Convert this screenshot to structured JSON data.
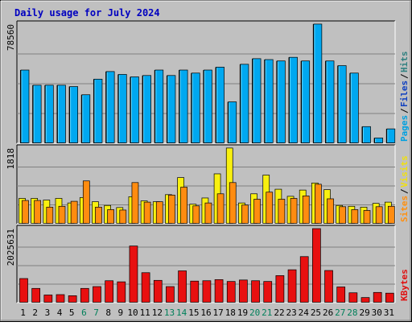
{
  "chart_data": [
    {
      "type": "bar",
      "title": "Daily usage for July 2024",
      "panel": "pages-files-hits",
      "ymax_label": "78560",
      "legend": [
        {
          "name": "Pages",
          "color": "#00a0e0"
        },
        {
          "name": "Files",
          "color": "#1040c0"
        },
        {
          "name": "Hits",
          "color": "#308080"
        }
      ],
      "categories": [
        "1",
        "2",
        "3",
        "4",
        "5",
        "6",
        "7",
        "8",
        "9",
        "10",
        "11",
        "12",
        "13",
        "14",
        "15",
        "16",
        "17",
        "18",
        "19",
        "20",
        "21",
        "22",
        "23",
        "24",
        "25",
        "26",
        "27",
        "28",
        "29",
        "30",
        "31"
      ],
      "weekend_days": [
        "6",
        "7",
        "13",
        "14",
        "20",
        "21",
        "27",
        "28"
      ],
      "ylim": [
        0,
        78560
      ],
      "series": [
        {
          "name": "Hits",
          "values": [
            48300,
            38300,
            38300,
            38300,
            37400,
            32000,
            42300,
            47300,
            45400,
            43800,
            44700,
            48300,
            44700,
            48300,
            46300,
            48300,
            50200,
            27300,
            52100,
            55800,
            55200,
            54300,
            56700,
            54300,
            78600,
            54300,
            51200,
            46300,
            11000,
            3500,
            9500
          ]
        },
        {
          "name": "Files",
          "values": [
            48300,
            38300,
            38300,
            38300,
            37400,
            32000,
            42300,
            47300,
            45400,
            43800,
            44700,
            48300,
            44700,
            48300,
            46300,
            48300,
            50200,
            27300,
            52100,
            55800,
            55200,
            54300,
            56700,
            54300,
            78600,
            54300,
            51200,
            46300,
            11000,
            3500,
            9500
          ]
        }
      ]
    },
    {
      "type": "bar",
      "panel": "sites-visits",
      "ymax_label": "1818",
      "legend": [
        {
          "name": "Sites",
          "color": "#ff9010"
        },
        {
          "name": "Visits",
          "color": "#f0e010"
        }
      ],
      "categories": [
        "1",
        "2",
        "3",
        "4",
        "5",
        "6",
        "7",
        "8",
        "9",
        "10",
        "11",
        "12",
        "13",
        "14",
        "15",
        "16",
        "17",
        "18",
        "19",
        "20",
        "21",
        "22",
        "23",
        "24",
        "25",
        "26",
        "27",
        "28",
        "29",
        "30",
        "31"
      ],
      "ylim": [
        0,
        1818
      ],
      "series": [
        {
          "name": "Visits",
          "values": [
            610,
            610,
            570,
            610,
            500,
            630,
            530,
            440,
            390,
            650,
            550,
            530,
            700,
            1110,
            470,
            620,
            1200,
            1820,
            500,
            720,
            1170,
            830,
            660,
            810,
            980,
            820,
            440,
            420,
            400,
            490,
            520
          ]
        },
        {
          "name": "Sites",
          "values": [
            560,
            560,
            400,
            420,
            540,
            1030,
            400,
            340,
            330,
            990,
            520,
            530,
            690,
            880,
            430,
            500,
            720,
            990,
            450,
            590,
            760,
            590,
            610,
            670,
            950,
            600,
            410,
            340,
            320,
            410,
            420
          ]
        }
      ]
    },
    {
      "type": "bar",
      "panel": "kbytes",
      "ymax_label": "2025631",
      "legend": [
        {
          "name": "KBytes",
          "color": "#e01010"
        }
      ],
      "categories": [
        "1",
        "2",
        "3",
        "4",
        "5",
        "6",
        "7",
        "8",
        "9",
        "10",
        "11",
        "12",
        "13",
        "14",
        "15",
        "16",
        "17",
        "18",
        "19",
        "20",
        "21",
        "22",
        "23",
        "24",
        "25",
        "26",
        "27",
        "28",
        "29",
        "30",
        "31"
      ],
      "ylim": [
        0,
        2025631
      ],
      "series": [
        {
          "name": "KBytes",
          "values": [
            660000,
            390000,
            210000,
            220000,
            190000,
            390000,
            440000,
            600000,
            570000,
            1550000,
            820000,
            610000,
            440000,
            870000,
            590000,
            600000,
            630000,
            580000,
            620000,
            600000,
            580000,
            740000,
            900000,
            1260000,
            2025631,
            880000,
            430000,
            270000,
            140000,
            280000,
            260000
          ]
        }
      ]
    }
  ]
}
